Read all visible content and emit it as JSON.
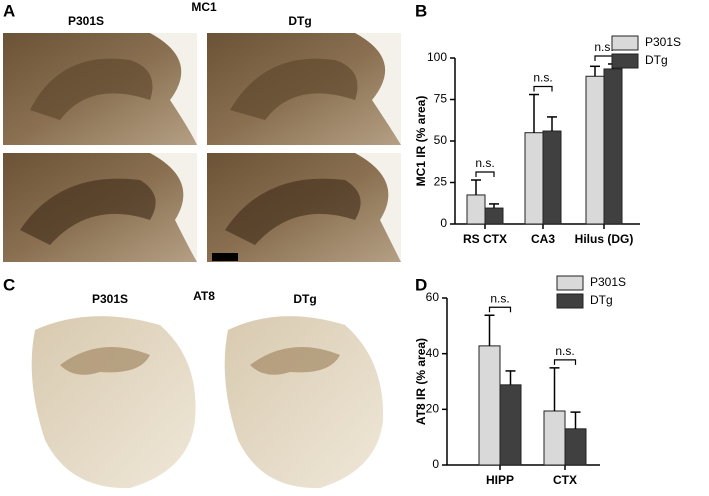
{
  "panel_labels": [
    "A",
    "B",
    "C",
    "D"
  ],
  "panel_a": {
    "title": "MC1",
    "columns": [
      "P301S",
      "DTg"
    ]
  },
  "panel_c": {
    "title": "AT8",
    "columns": [
      "P301S",
      "DTg"
    ]
  },
  "chart_data": [
    {
      "type": "bar",
      "ylabel": "MC1 IR (% area)",
      "categories": [
        "RS CTX",
        "CA3",
        "Hilus (DG)"
      ],
      "series": [
        {
          "name": "P301S",
          "color": "#d9d9d9",
          "values": [
            17.5,
            55,
            89
          ],
          "errors": [
            9,
            23,
            6
          ]
        },
        {
          "name": "DTg",
          "color": "#404040",
          "values": [
            9.6,
            56,
            93.4
          ],
          "errors": [
            2.5,
            8.5,
            3
          ]
        }
      ],
      "ylim": [
        0,
        100
      ],
      "yticks": [
        0,
        25,
        50,
        75,
        100
      ],
      "annotations": [
        "n.s.",
        "n.s.",
        "n.s."
      ],
      "legend": "upper right"
    },
    {
      "type": "bar",
      "ylabel": "AT8 IR (% area)",
      "categories": [
        "HIPP",
        "CTX"
      ],
      "series": [
        {
          "name": "P301S",
          "color": "#d9d9d9",
          "values": [
            42.8,
            19.4
          ],
          "errors": [
            11,
            15.5
          ]
        },
        {
          "name": "DTg",
          "color": "#404040",
          "values": [
            28.8,
            13
          ],
          "errors": [
            5,
            6
          ]
        }
      ],
      "ylim": [
        0,
        60
      ],
      "yticks": [
        0,
        20,
        40,
        60
      ],
      "annotations": [
        "n.s.",
        "n.s."
      ],
      "legend": "upper right"
    }
  ]
}
